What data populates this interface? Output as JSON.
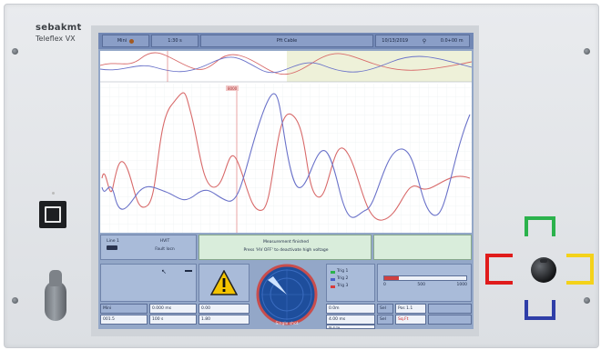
{
  "device": {
    "brand": "sebakmt",
    "model": "Teleflex VX"
  },
  "topbar": {
    "left_label": "Mini",
    "center_left_label": "1:30 s",
    "title": "Pft Cable",
    "right_label": "10/13/2019",
    "right_value": "0.0+00 m"
  },
  "plot": {
    "marker_label": "8000",
    "series_colors": {
      "red": "#d86a6a",
      "blue": "#6a72c9"
    }
  },
  "status": {
    "line_label": "Line 1",
    "mode_label": "HVIT",
    "mode_value": "Fault locn",
    "message_title": "Measurement finished",
    "message_text": "Press 'HV OFF' to deactivate high voltage"
  },
  "legend": {
    "items": [
      "Trig 1",
      "Trig 2",
      "Trig 3"
    ]
  },
  "scale": {
    "ticks": [
      "0",
      "500",
      "1000"
    ]
  },
  "readouts": {
    "col1": [
      "Mini",
      "001.5"
    ],
    "col2": [
      "0.000 ms",
      "100 s"
    ],
    "col3": [
      "0.00",
      "1.80"
    ],
    "col4": [
      "0.0m",
      "4.00 ms",
      "81.0 ms"
    ],
    "col5": [
      "Sel",
      "Sel",
      "0 kV"
    ],
    "col6": [
      "Pos 1.1",
      "Sq.Ft"
    ]
  },
  "dial": {
    "caption": "Single shot"
  },
  "icons": {
    "warning": "warning-icon",
    "record": "record-dot-icon",
    "zoom": "magnifier-icon",
    "cursor": "cursor-icon"
  },
  "colors": {
    "screen_bg": "#93a7c8",
    "bracket_green": "#2bb24c",
    "bracket_red": "#e01b1b",
    "bracket_yellow": "#f4d21a",
    "bracket_blue": "#2f3ea8"
  }
}
